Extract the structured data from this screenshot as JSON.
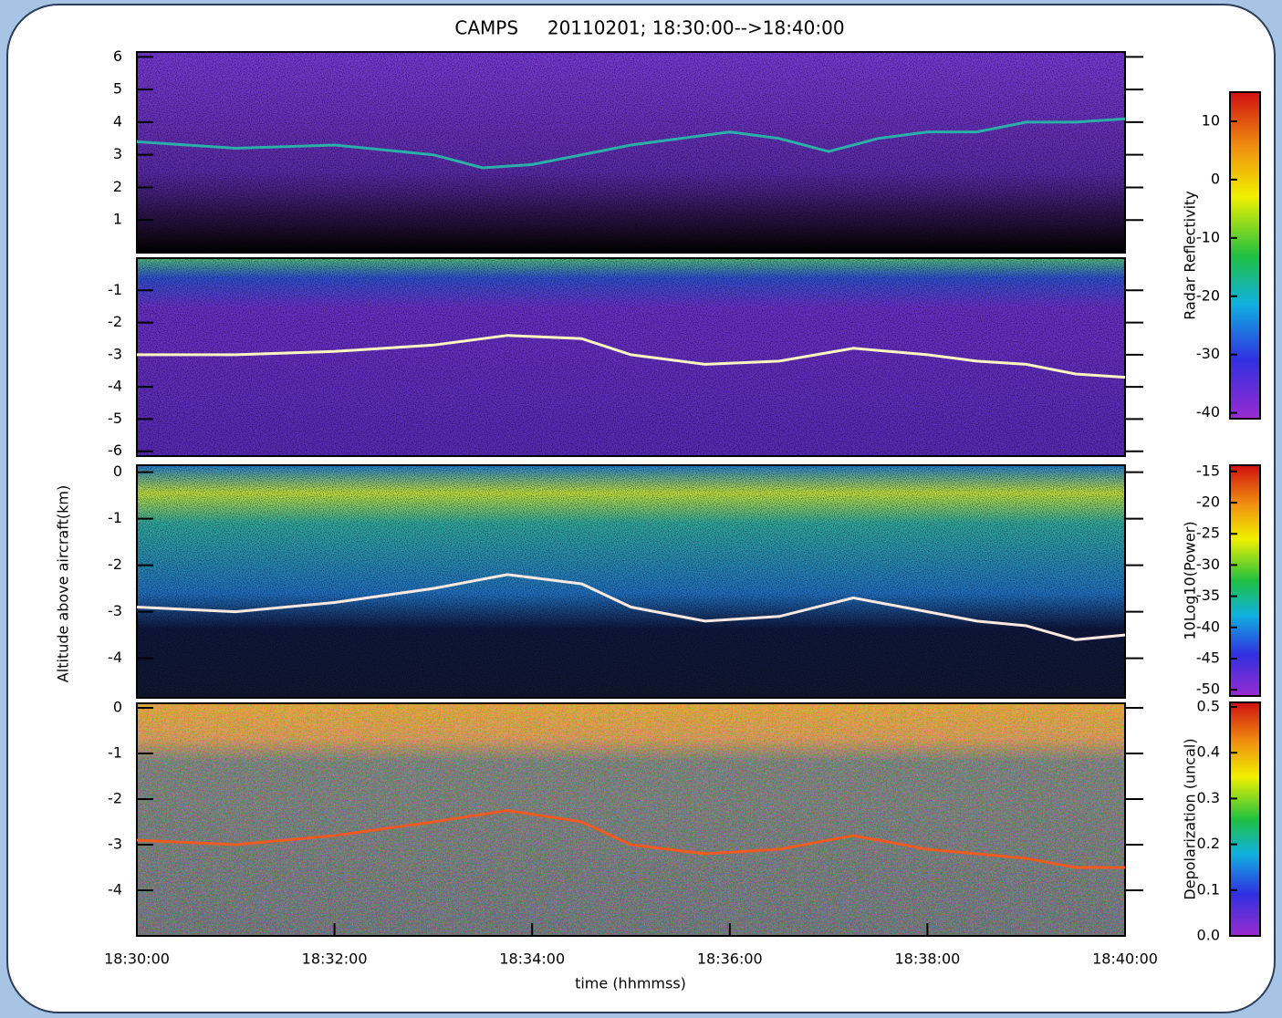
{
  "chart_data": [
    {
      "type": "line",
      "title": "CAMPS     20110201; 18:30:00-->18:40:00",
      "x": [
        "18:30:00",
        "18:31:00",
        "18:32:00",
        "18:33:00",
        "18:33:30",
        "18:34:00",
        "18:35:00",
        "18:36:00",
        "18:36:30",
        "18:37:00",
        "18:37:30",
        "18:38:00",
        "18:38:30",
        "18:39:00",
        "18:39:30",
        "18:40:00"
      ],
      "values": [
        3.4,
        3.2,
        3.3,
        3.0,
        2.6,
        2.7,
        3.3,
        3.7,
        3.5,
        3.1,
        3.5,
        3.7,
        3.7,
        4.0,
        4.0,
        4.1
      ],
      "color": "#2ab0a8",
      "xlim": [
        "18:30:00",
        "18:40:00"
      ],
      "ylim": [
        0,
        6.15
      ],
      "yticks": [
        1,
        2,
        3,
        4,
        5,
        6
      ],
      "colorbar": {
        "label": "Radar Reflectivity",
        "lim": [
          -41,
          15
        ],
        "ticks": [
          10,
          0,
          -10,
          -20,
          -30,
          -40
        ]
      }
    },
    {
      "type": "line",
      "x": [
        "18:30:00",
        "18:31:00",
        "18:32:00",
        "18:33:00",
        "18:33:45",
        "18:34:30",
        "18:35:00",
        "18:35:45",
        "18:36:30",
        "18:37:15",
        "18:38:00",
        "18:38:30",
        "18:39:00",
        "18:39:30",
        "18:40:00"
      ],
      "values": [
        -3.0,
        -3.0,
        -2.9,
        -2.7,
        -2.4,
        -2.5,
        -3.0,
        -3.3,
        -3.2,
        -2.8,
        -3.0,
        -3.2,
        -3.3,
        -3.6,
        -3.7
      ],
      "color": "#fff6c0",
      "xlim": [
        "18:30:00",
        "18:40:00"
      ],
      "ylim": [
        -6.15,
        0
      ],
      "yticks": [
        -1,
        -2,
        -3,
        -4,
        -5,
        -6
      ]
    },
    {
      "type": "line",
      "ylabel": "Altitude above aircraft(km)",
      "x": [
        "18:30:00",
        "18:31:00",
        "18:32:00",
        "18:33:00",
        "18:33:45",
        "18:34:30",
        "18:35:00",
        "18:35:45",
        "18:36:30",
        "18:37:15",
        "18:38:00",
        "18:38:30",
        "18:39:00",
        "18:39:30",
        "18:40:00"
      ],
      "values": [
        -2.9,
        -3.0,
        -2.8,
        -2.5,
        -2.2,
        -2.4,
        -2.9,
        -3.2,
        -3.1,
        -2.7,
        -3.0,
        -3.2,
        -3.3,
        -3.6,
        -3.5
      ],
      "color": "#ffe8e0",
      "xlim": [
        "18:30:00",
        "18:40:00"
      ],
      "ylim": [
        -4.85,
        0.15
      ],
      "yticks": [
        0,
        -1,
        -2,
        -3,
        -4
      ],
      "colorbar": {
        "label": "10Log10(Power)",
        "lim": [
          -51,
          -14
        ],
        "ticks": [
          -15,
          -20,
          -25,
          -30,
          -35,
          -40,
          -45,
          -50
        ]
      }
    },
    {
      "type": "line",
      "xlabel": "time (hhmmss)",
      "x": [
        "18:30:00",
        "18:31:00",
        "18:32:00",
        "18:33:00",
        "18:33:45",
        "18:34:30",
        "18:35:00",
        "18:35:45",
        "18:36:30",
        "18:37:15",
        "18:38:00",
        "18:38:30",
        "18:39:00",
        "18:39:30",
        "18:40:00"
      ],
      "values": [
        -2.9,
        -3.0,
        -2.8,
        -2.5,
        -2.25,
        -2.5,
        -3.0,
        -3.2,
        -3.1,
        -2.8,
        -3.1,
        -3.2,
        -3.3,
        -3.5,
        -3.5
      ],
      "color": "#f05a20",
      "xlim": [
        "18:30:00",
        "18:40:00"
      ],
      "xticks": [
        "18:30:00",
        "18:32:00",
        "18:34:00",
        "18:36:00",
        "18:38:00",
        "18:40:00"
      ],
      "ylim": [
        -5,
        0.1
      ],
      "yticks": [
        0,
        -1,
        -2,
        -3,
        -4
      ],
      "colorbar": {
        "label": "Depolarization (uncal)",
        "lim": [
          0,
          0.51
        ],
        "ticks": [
          {
            "value": 0,
            "label": "0.0"
          },
          0.1,
          0.2,
          0.3,
          0.4,
          0.5
        ]
      }
    }
  ]
}
